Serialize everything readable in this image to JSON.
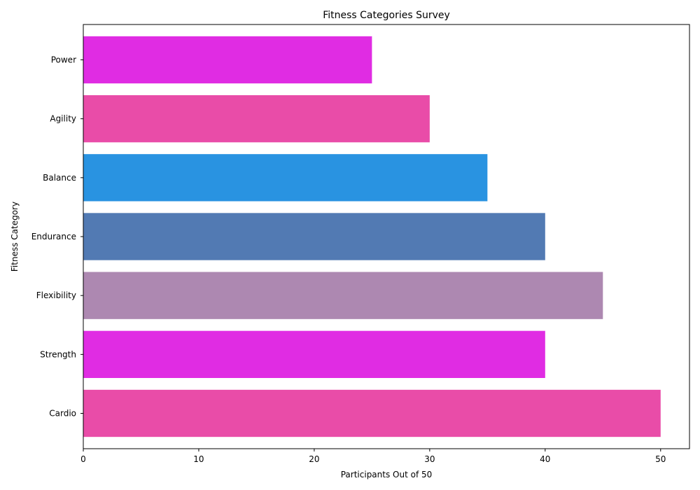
{
  "chart_data": {
    "type": "bar",
    "orientation": "horizontal",
    "title": "Fitness Categories Survey",
    "xlabel": "Participants Out of 50",
    "ylabel": "Fitness Category",
    "categories": [
      "Cardio",
      "Strength",
      "Flexibility",
      "Endurance",
      "Balance",
      "Agility",
      "Power"
    ],
    "values": [
      50,
      40,
      45,
      40,
      35,
      30,
      25
    ],
    "colors": [
      "#E94CA8",
      "#E02CE3",
      "#AD88B1",
      "#527AB3",
      "#2993E1",
      "#E94CA8",
      "#E02CE3"
    ],
    "xlim": [
      0,
      52.5
    ],
    "xticks": [
      0,
      10,
      20,
      30,
      40,
      50
    ],
    "grid": false
  }
}
